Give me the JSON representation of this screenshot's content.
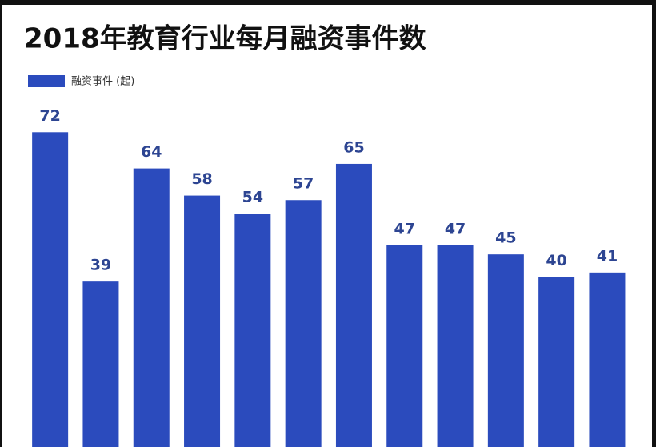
{
  "chart_data": {
    "type": "bar",
    "title": "2018年教育行业每月融资事件数",
    "categories": [
      null,
      null,
      null,
      null,
      null,
      null,
      null,
      null,
      null,
      null,
      null,
      null
    ],
    "series": [
      {
        "name": "融资事件 (起)",
        "color": "#2b4bbd",
        "values": [
          72,
          39,
          64,
          58,
          54,
          57,
          65,
          47,
          47,
          45,
          40,
          41
        ]
      }
    ],
    "ylim": [
      0,
      80
    ]
  }
}
